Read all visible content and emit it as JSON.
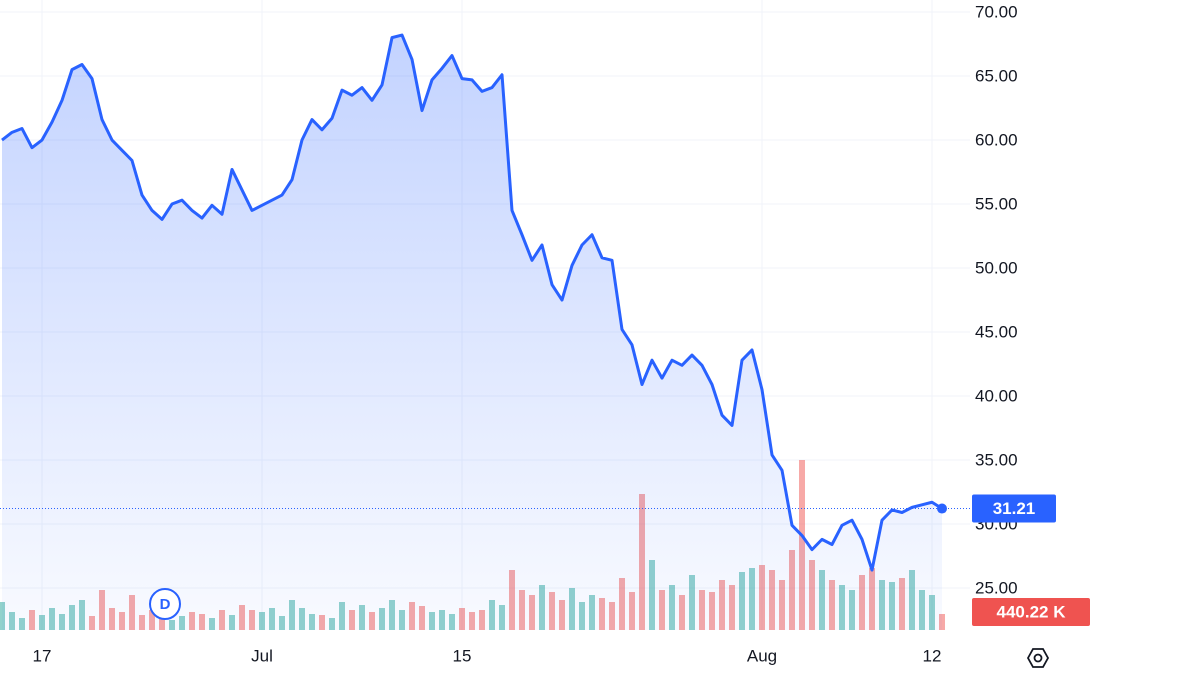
{
  "chart_data": {
    "type": "area",
    "categories": [
      null,
      null,
      null,
      null,
      "17",
      null,
      null,
      null,
      null,
      null,
      null,
      null,
      null,
      null,
      null,
      null,
      null,
      null,
      null,
      null,
      null,
      null,
      null,
      null,
      null,
      null,
      "Jul",
      null,
      null,
      null,
      null,
      null,
      null,
      null,
      null,
      null,
      null,
      null,
      null,
      null,
      null,
      null,
      null,
      null,
      null,
      null,
      "15",
      null,
      null,
      null,
      null,
      null,
      null,
      null,
      null,
      null,
      null,
      null,
      null,
      null,
      null,
      null,
      null,
      null,
      null,
      null,
      null,
      null,
      null,
      null,
      null,
      null,
      null,
      null,
      null,
      null,
      "Aug",
      null,
      null,
      null,
      null,
      null,
      null,
      null,
      null,
      null,
      null,
      null,
      null,
      null,
      null,
      null,
      null,
      "12",
      null
    ],
    "series": [
      {
        "color": "#2962ff",
        "values": [
          60.0,
          60.6,
          60.9,
          59.4,
          60.0,
          61.4,
          63.1,
          65.5,
          65.9,
          64.8,
          61.6,
          60.0,
          59.2,
          58.4,
          55.7,
          54.5,
          53.8,
          55.0,
          55.3,
          54.5,
          53.9,
          54.9,
          54.2,
          57.7,
          56.1,
          54.5,
          54.9,
          55.3,
          55.7,
          56.9,
          60.0,
          61.6,
          60.8,
          61.7,
          63.9,
          63.5,
          64.1,
          63.1,
          64.3,
          68.0,
          68.2,
          66.3,
          62.3,
          64.7,
          65.6,
          66.6,
          64.8,
          64.7,
          63.8,
          64.1,
          65.1,
          54.5,
          52.6,
          50.6,
          51.8,
          48.7,
          47.5,
          50.2,
          51.8,
          52.6,
          50.8,
          50.6,
          45.2,
          44.0,
          40.9,
          42.8,
          41.4,
          42.8,
          42.4,
          43.2,
          42.4,
          40.9,
          38.5,
          37.7,
          42.8,
          43.6,
          40.5,
          35.4,
          34.2,
          29.9,
          29.1,
          28.0,
          28.8,
          28.4,
          29.9,
          30.3,
          28.8,
          26.4,
          30.3,
          31.1,
          30.9,
          31.3,
          31.5,
          31.7,
          31.21
        ]
      },
      {
        "type": "bar",
        "axis": "y2",
        "up_color": "#26a69a",
        "down_color": "#ef5350",
        "values": [
          770000,
          495000,
          330000,
          550000,
          412500,
          605000,
          440000,
          687500,
          825000,
          385000,
          1100000,
          605000,
          495000,
          962500,
          412500,
          550000,
          330000,
          275000,
          385000,
          495000,
          440000,
          330000,
          550000,
          412500,
          687500,
          550000,
          495000,
          605000,
          385000,
          825000,
          605000,
          440000,
          412500,
          330000,
          770000,
          550000,
          687500,
          495000,
          605000,
          825000,
          550000,
          770000,
          660000,
          495000,
          550000,
          440000,
          605000,
          495000,
          550000,
          825000,
          687500,
          1650000,
          1100000,
          962500,
          1237500,
          1045000,
          825000,
          1155000,
          770000,
          962500,
          880000,
          770000,
          1430000,
          1045000,
          3740000,
          1925000,
          1100000,
          1237500,
          962500,
          1512500,
          1100000,
          1045000,
          1375000,
          1237500,
          1595000,
          1705000,
          1787500,
          1650000,
          1375000,
          2200000,
          4675000,
          1925000,
          1650000,
          1375000,
          1237500,
          1100000,
          1512500,
          1705000,
          1375000,
          1320000,
          1430000,
          1650000,
          1100000,
          962500,
          440220
        ],
        "value_labels": [
          null,
          null,
          null,
          null,
          null,
          null,
          null,
          null,
          null,
          null,
          null,
          null,
          null,
          null,
          null,
          null,
          null,
          null,
          null,
          null,
          null,
          null,
          null,
          null,
          null,
          null,
          null,
          null,
          null,
          null,
          null,
          null,
          null,
          null,
          null,
          null,
          null,
          null,
          null,
          null,
          null,
          null,
          null,
          null,
          null,
          null,
          null,
          null,
          null,
          null,
          null,
          null,
          null,
          null,
          null,
          null,
          null,
          null,
          null,
          null,
          null,
          null,
          null,
          null,
          null,
          null,
          null,
          null,
          null,
          null,
          null,
          null,
          null,
          null,
          null,
          null,
          null,
          null,
          null,
          null,
          null,
          null,
          null,
          null,
          null,
          null,
          null,
          null,
          null,
          null,
          null,
          null,
          null,
          null,
          "440.22 K"
        ]
      }
    ],
    "ylim": [
      21.72,
      70.94
    ],
    "yticks": [
      {
        "value": 25,
        "label": "25.00"
      },
      {
        "value": 30,
        "label": "30.00"
      },
      {
        "value": 35,
        "label": "35.00"
      },
      {
        "value": 40,
        "label": "40.00"
      },
      {
        "value": 45,
        "label": "45.00"
      },
      {
        "value": 50,
        "label": "50.00"
      },
      {
        "value": 55,
        "label": "55.00"
      },
      {
        "value": 60,
        "label": "60.00"
      },
      {
        "value": 65,
        "label": "65.00"
      },
      {
        "value": 70,
        "label": "70.00"
      }
    ],
    "y2lim": [
      0,
      17325000
    ],
    "grid": true,
    "marker_label": "D"
  }
}
